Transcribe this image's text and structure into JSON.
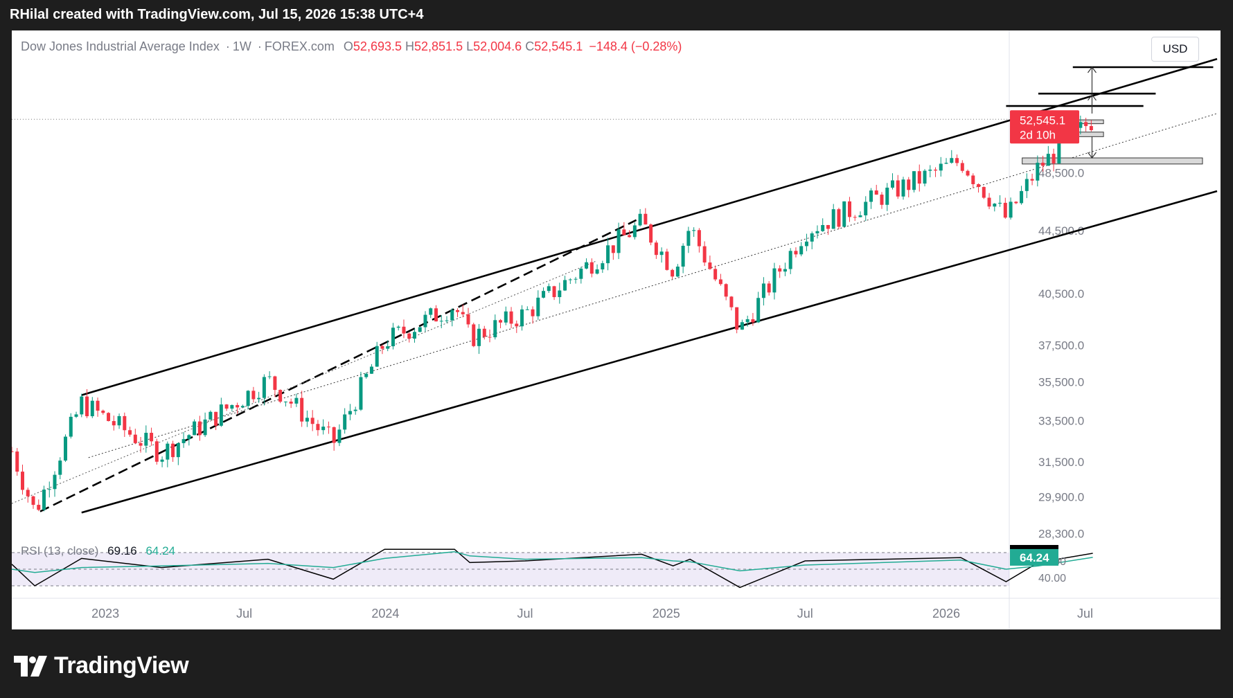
{
  "header": {
    "attribution": "RHilal created with TradingView.com, Jul 15, 2026 15:38 UTC+4"
  },
  "legend": {
    "symbol": "Dow Jones Industrial Average Index",
    "interval": "1W",
    "exchange": "FOREX.com",
    "open_label": "O",
    "open": "52,693.5",
    "high_label": "H",
    "high": "52,851.5",
    "low_label": "L",
    "low": "52,004.6",
    "close_label": "C",
    "close": "52,545.1",
    "change": "−148.4 (−0.28%)"
  },
  "currency": "USD",
  "price_tag": {
    "value": "52,545.1",
    "countdown": "2d 10h"
  },
  "rsi": {
    "label": "RSI (13, close)",
    "value": "69.16",
    "ma_value": "64.24"
  },
  "brand": {
    "name": "TradingView"
  },
  "colors": {
    "up": "#089981",
    "down": "#f23645",
    "rsi_line": "#000000",
    "rsi_ma": "#22ab94",
    "rsi_band": "#7e57c2",
    "background": "#1e1e1e"
  },
  "chart_data": [
    {
      "type": "candlestick",
      "symbol": "Dow Jones Industrial Average Index",
      "interval": "1W",
      "price_axis": {
        "scale": "log",
        "ticks": [
          "48,500.0",
          "44,500.0",
          "40,500.0",
          "37,500.0",
          "35,500.0",
          "33,500.0",
          "31,500.0",
          "29,900.0",
          "28,300.0"
        ],
        "tick_values": [
          48500,
          44500,
          40500,
          37500,
          35500,
          33500,
          31500,
          29900,
          28300
        ],
        "range": [
          27500,
          57000
        ]
      },
      "time_axis": {
        "labels": [
          "2023",
          "Jul",
          "2024",
          "Jul",
          "2025",
          "Jul",
          "2026",
          "Jul"
        ],
        "label_dates": [
          "2023-01-01",
          "2023-07-01",
          "2024-01-01",
          "2024-07-01",
          "2025-01-01",
          "2025-07-01",
          "2026-01-01",
          "2026-07-01"
        ],
        "range": [
          "2022-09-01",
          "2026-12-20"
        ]
      },
      "last_price": 52545.1,
      "key_points": [
        {
          "date": "2022-09-01",
          "close": 32000
        },
        {
          "date": "2022-10-01",
          "close": 29200
        },
        {
          "date": "2022-12-01",
          "close": 34400
        },
        {
          "date": "2023-03-15",
          "close": 31900
        },
        {
          "date": "2023-08-01",
          "close": 35600
        },
        {
          "date": "2023-10-25",
          "close": 32400
        },
        {
          "date": "2023-12-31",
          "close": 37700
        },
        {
          "date": "2024-03-31",
          "close": 39800
        },
        {
          "date": "2024-04-20",
          "close": 37900
        },
        {
          "date": "2024-07-01",
          "close": 39300
        },
        {
          "date": "2024-11-30",
          "close": 45000
        },
        {
          "date": "2025-01-10",
          "close": 42000
        },
        {
          "date": "2025-02-01",
          "close": 44800
        },
        {
          "date": "2025-04-07",
          "close": 38300
        },
        {
          "date": "2025-07-01",
          "close": 44500
        },
        {
          "date": "2026-01-20",
          "close": 49400
        },
        {
          "date": "2026-03-20",
          "close": 45300
        },
        {
          "date": "2026-05-01",
          "close": 48900
        },
        {
          "date": "2026-07-11",
          "close": 52545.1
        }
      ]
    },
    {
      "type": "line",
      "name": "RSI (13, close)",
      "y_range": [
        30,
        80
      ],
      "levels": [
        70,
        50,
        30
      ],
      "series": [
        {
          "name": "RSI",
          "x": [
            "2022-09-01",
            "2022-10-01",
            "2022-12-01",
            "2023-03-15",
            "2023-08-01",
            "2023-10-25",
            "2023-12-31",
            "2024-03-31",
            "2024-04-20",
            "2024-07-01",
            "2024-11-30",
            "2025-01-10",
            "2025-02-01",
            "2025-04-07",
            "2025-07-01",
            "2026-01-20",
            "2026-03-20",
            "2026-05-01",
            "2026-07-11"
          ],
          "values": [
            56,
            30,
            63,
            52,
            62,
            38,
            74,
            74,
            58,
            60,
            68,
            54,
            62,
            28,
            60,
            64,
            35,
            58,
            69.16
          ]
        },
        {
          "name": "RSI MA",
          "x": [
            "2022-09-01",
            "2022-10-01",
            "2022-12-01",
            "2023-03-15",
            "2023-08-01",
            "2023-10-25",
            "2023-12-31",
            "2024-03-31",
            "2024-04-20",
            "2024-07-01",
            "2024-11-30",
            "2025-01-10",
            "2025-02-01",
            "2025-04-07",
            "2025-07-01",
            "2026-01-20",
            "2026-03-20",
            "2026-05-01",
            "2026-07-11"
          ],
          "values": [
            50,
            46,
            52,
            54,
            57,
            52,
            63,
            71,
            66,
            62,
            64,
            60,
            59,
            48,
            55,
            61,
            50,
            54,
            64.24
          ]
        }
      ],
      "tick_labels": [
        "40.00",
        "60.00"
      ]
    }
  ]
}
